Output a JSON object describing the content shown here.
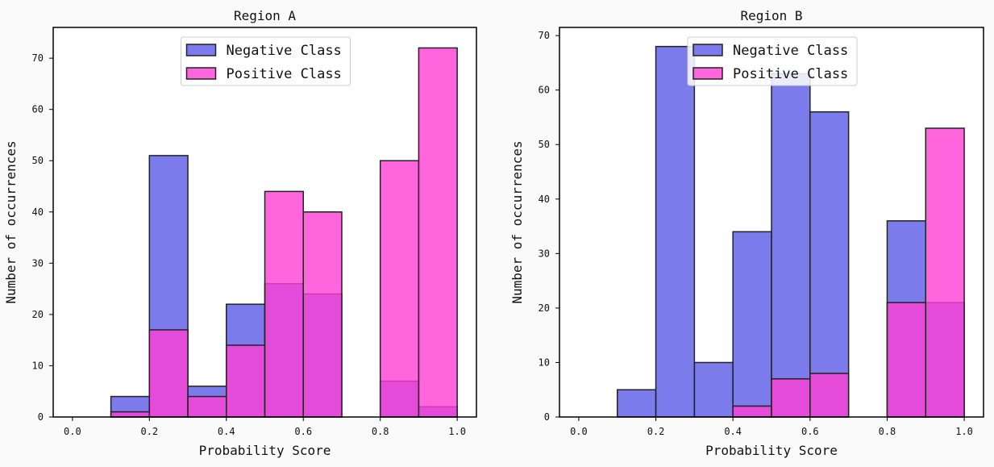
{
  "chart_data": [
    {
      "type": "bar",
      "title": "Region A",
      "xlabel": "Probability Score",
      "ylabel": "Number of occurrences",
      "xlim": [
        -0.05,
        1.05
      ],
      "ylim": [
        0,
        76
      ],
      "xticks": [
        "0.0",
        "0.2",
        "0.4",
        "0.6",
        "0.8",
        "1.0"
      ],
      "yticks": [
        "0",
        "10",
        "20",
        "30",
        "40",
        "50",
        "60",
        "70"
      ],
      "bin_edges": [
        0.0,
        0.1,
        0.2,
        0.3,
        0.4,
        0.5,
        0.6,
        0.7,
        0.8,
        0.9,
        1.0
      ],
      "legend_position": "top-center",
      "series": [
        {
          "name": "Negative Class",
          "color": "#5a5ae6",
          "values": [
            0,
            4,
            51,
            6,
            22,
            26,
            24,
            0,
            7,
            2
          ]
        },
        {
          "name": "Positive Class",
          "color": "#ff40d4",
          "values": [
            0,
            1,
            17,
            4,
            14,
            44,
            40,
            0,
            50,
            72
          ]
        }
      ]
    },
    {
      "type": "bar",
      "title": "Region B",
      "xlabel": "Probability Score",
      "ylabel": "Number of occurrences",
      "xlim": [
        -0.05,
        1.05
      ],
      "ylim": [
        0,
        71.5
      ],
      "xticks": [
        "0.0",
        "0.2",
        "0.4",
        "0.6",
        "0.8",
        "1.0"
      ],
      "yticks": [
        "0",
        "10",
        "20",
        "30",
        "40",
        "50",
        "60",
        "70"
      ],
      "bin_edges": [
        0.0,
        0.1,
        0.2,
        0.3,
        0.4,
        0.5,
        0.6,
        0.7,
        0.8,
        0.9,
        1.0
      ],
      "legend_position": "top-center",
      "series": [
        {
          "name": "Negative Class",
          "color": "#5a5ae6",
          "values": [
            0,
            5,
            68,
            10,
            34,
            63,
            56,
            0,
            36,
            21
          ]
        },
        {
          "name": "Positive Class",
          "color": "#ff40d4",
          "values": [
            0,
            0,
            0,
            0,
            2,
            7,
            8,
            0,
            21,
            53
          ]
        }
      ]
    }
  ]
}
